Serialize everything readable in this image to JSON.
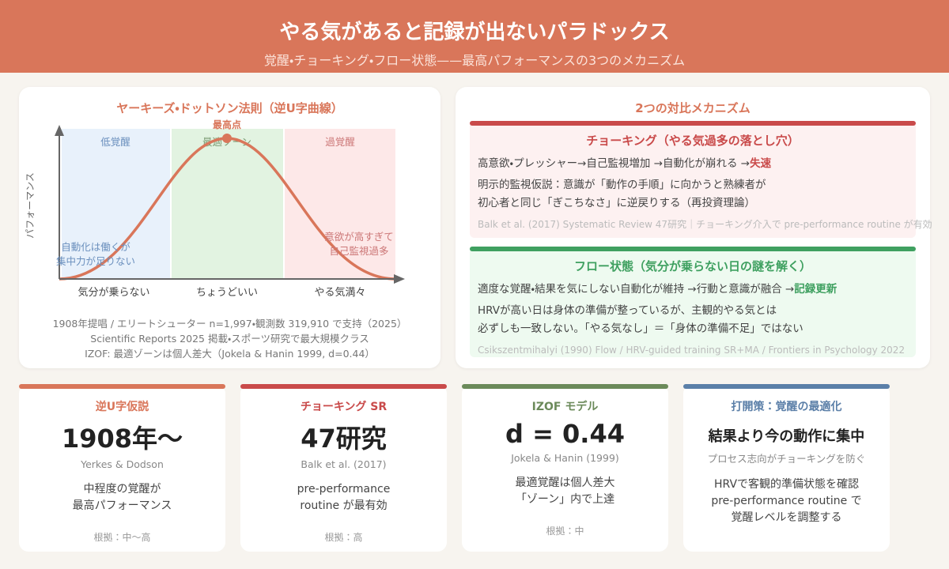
{
  "header": {
    "title": "やる気があると記録が出ないパラドックス",
    "subtitle": "覚醒・チョーキング・フロー状態——最高パフォーマンスの3つのメカニズム"
  },
  "left_panel": {
    "title": "ヤーキーズ・ドットソン法則（逆U字曲線）",
    "y_axis_label": "パフォーマンス",
    "peak_label": "最高点",
    "zones": [
      "低覚醒",
      "最適ゾーン",
      "過覚醒"
    ],
    "notes": [
      [
        "自動化は働くが",
        "集中力が足りない"
      ],
      [
        "意欲が高すぎて",
        "自己監視過多"
      ]
    ],
    "x_labels": [
      "気分が乗らない",
      "ちょうどいい",
      "やる気満々"
    ],
    "footnotes": [
      "1908年提唱 / エリートシューター n=1,997・観測数 319,910 で支持（2025）",
      "Scientific Reports 2025 掲載・スポーツ研究で最大規模クラス",
      "IZOF: 最適ゾーンは個人差大（Jokela & Hanin 1999, d=0.44）"
    ]
  },
  "right_panel": {
    "title": "2つの対比メカニズム",
    "cards": [
      {
        "title": "チョーキング（やる気過多の落とし穴）",
        "flow": "高意欲・プレッシャー→自己監視増加 →自動化が崩れる →",
        "emphasis": "失速",
        "lines": [
          "明示的監視仮説：意識が「動作の手順」に向かうと熟練者が",
          "初心者と同じ「ぎこちなさ」に逆戻りする（再投資理論）"
        ],
        "citation": "Balk et al. (2017) Systematic Review 47研究｜チョーキング介入で pre-performance routine が有効"
      },
      {
        "title": "フロー状態（気分が乗らない日の謎を解く）",
        "flow": "適度な覚醒・結果を気にしない自動化が維持 →行動と意識が融合 →",
        "emphasis": "記録更新",
        "lines": [
          "HRVが高い日は身体の準備が整っているが、主観的やる気とは",
          "必ずしも一致しない。「やる気なし」＝「身体の準備不足」ではない"
        ],
        "citation": "Csikszentmihalyi (1990) Flow / HRV-guided training SR+MA / Frontiers in Psychology 2022"
      }
    ]
  },
  "cards": [
    {
      "label": "逆U字仮説",
      "big": "1908年〜",
      "sub": "Yerkes & Dodson",
      "lines": [
        "中程度の覚醒が",
        "最高パフォーマンス"
      ],
      "basis": "根拠：中〜高"
    },
    {
      "label": "チョーキング SR",
      "big": "47研究",
      "sub": "Balk et al. (2017)",
      "lines": [
        "pre-performance",
        "routine が最有効"
      ],
      "basis": "根拠：高"
    },
    {
      "label": "IZOF モデル",
      "big": "d = 0.44",
      "sub": "Jokela & Hanin (1999)",
      "lines": [
        "最適覚醒は個人差大",
        "「ゾーン」内で上達"
      ],
      "basis": "根拠：中"
    },
    {
      "label": "打開策：覚醒の最適化",
      "big": "結果より今の動作に集中",
      "sub": "プロセス志向がチョーキングを防ぐ",
      "lines": [
        "HRVで客観的準備状態を確認",
        "pre-performance routine で",
        "覚醒レベルを調整する"
      ]
    }
  ]
}
